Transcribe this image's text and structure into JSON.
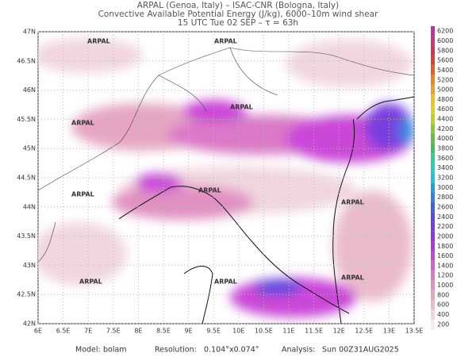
{
  "header": {
    "line1": "ARPAL (Genoa, Italy)  –  ISAC-CNR (Bologna, Italy)",
    "line2": "Convective Available Potential Energy (J/kg), 6000–10m wind shear",
    "line3": "15 UTC Tue 02 SEP  –  τ = 63h"
  },
  "map": {
    "watermark": "ARPAL",
    "lat_ticks": [
      {
        "value": 47,
        "label": "47N"
      },
      {
        "value": 46.5,
        "label": "46.5N"
      },
      {
        "value": 46,
        "label": "46N"
      },
      {
        "value": 45.5,
        "label": "45.5N"
      },
      {
        "value": 45,
        "label": "45N"
      },
      {
        "value": 44.5,
        "label": "44.5N"
      },
      {
        "value": 44,
        "label": "44N"
      },
      {
        "value": 43.5,
        "label": "43.5N"
      },
      {
        "value": 43,
        "label": "43N"
      },
      {
        "value": 42.5,
        "label": "42.5N"
      },
      {
        "value": 42,
        "label": "42N"
      }
    ],
    "lon_ticks": [
      {
        "value": 6,
        "label": "6E"
      },
      {
        "value": 6.5,
        "label": "6.5E"
      },
      {
        "value": 7,
        "label": "7E"
      },
      {
        "value": 7.5,
        "label": "7.5E"
      },
      {
        "value": 8,
        "label": "8E"
      },
      {
        "value": 8.5,
        "label": "8.5E"
      },
      {
        "value": 9,
        "label": "9E"
      },
      {
        "value": 9.5,
        "label": "9.5E"
      },
      {
        "value": 10,
        "label": "10E"
      },
      {
        "value": 10.5,
        "label": "10.5E"
      },
      {
        "value": 11,
        "label": "11E"
      },
      {
        "value": 11.5,
        "label": "11.5E"
      },
      {
        "value": 12,
        "label": "12E"
      },
      {
        "value": 12.5,
        "label": "12.5E"
      },
      {
        "value": 13,
        "label": "13E"
      },
      {
        "value": 13.5,
        "label": "13.5E"
      }
    ]
  },
  "colorbar": {
    "ticks": [
      200,
      400,
      600,
      800,
      1000,
      1200,
      1400,
      1600,
      1800,
      2000,
      2200,
      2400,
      2600,
      2800,
      3000,
      3200,
      3400,
      3600,
      3800,
      4000,
      4200,
      4400,
      4600,
      4800,
      5000,
      5200,
      5400,
      5600,
      5800,
      6000,
      6200
    ],
    "colors": [
      "#f7eaee",
      "#f1d6df",
      "#eabccb",
      "#e6a6c2",
      "#e190c2",
      "#dc78c8",
      "#d660d0",
      "#ca46d8",
      "#b632e0",
      "#9a30e0",
      "#7a3ce0",
      "#5a4ae0",
      "#4062e0",
      "#3082e0",
      "#20a2e0",
      "#20c0e0",
      "#20d0c0",
      "#30d090",
      "#40c060",
      "#60c040",
      "#90c830",
      "#c0d020",
      "#e0d020",
      "#f0c020",
      "#f0a020",
      "#f08020",
      "#e86020",
      "#e04030",
      "#d83050",
      "#d03080",
      "#c030a0"
    ]
  },
  "footer": {
    "model_label": "Model:",
    "model": "bolam",
    "resolution_label": "Resolution:",
    "resolution": "0.104°x0.074°",
    "analysis_label": "Analysis:",
    "analysis": "Sun 00Z31AUG2025"
  }
}
